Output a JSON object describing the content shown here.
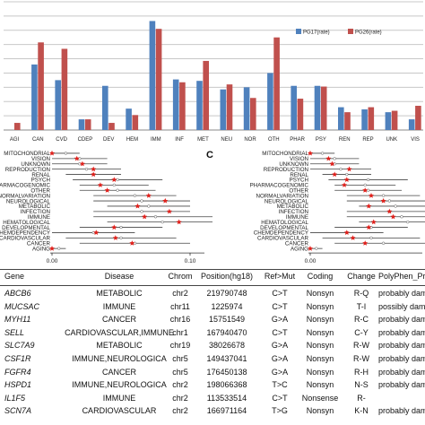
{
  "chart_data": [
    {
      "type": "bar",
      "categories": [
        "AGI",
        "CAN",
        "CVD",
        "CDEP",
        "DEV",
        "HEM",
        "IMM",
        "INF",
        "MET",
        "NEU",
        "NOR",
        "OTH",
        "PHAR",
        "PSY",
        "REN",
        "REP",
        "UNK",
        "VIS"
      ],
      "series": [
        {
          "name": "PG17(rate)",
          "color": "#4f81bd",
          "values": [
            0,
            9.2,
            7.0,
            1.5,
            6.2,
            3.0,
            15.3,
            7.1,
            6.9,
            5.7,
            6.0,
            8.0,
            6.2,
            6.2,
            3.2,
            2.9,
            2.5,
            1.5
          ]
        },
        {
          "name": "PG26(rate)",
          "color": "#c0504d",
          "values": [
            1.0,
            12.3,
            11.4,
            1.5,
            1.0,
            2.1,
            14.2,
            6.7,
            9.7,
            6.4,
            4.5,
            13.0,
            4.4,
            6.1,
            2.5,
            3.2,
            2.7,
            3.4
          ]
        }
      ],
      "ylim": [
        0,
        18
      ],
      "grid": true,
      "legend": "top-right"
    },
    {
      "type": "scatter",
      "panel": "B",
      "categories": [
        "MITOCHONDRIAL",
        "VISION",
        "UNKNOWN",
        "REPRODUCTION",
        "RENAL",
        "PSYCH",
        "PHARMACOGENOMIC",
        "OTHER",
        "NORMALVARIATION",
        "NEUROLOGICAL",
        "METABOLIC",
        "INFECTION",
        "IMMUNE",
        "HEMATOLOGICAL",
        "DEVELOPMENTAL",
        "CHEMDEPENDENCY",
        "CARDIOVASCULAR",
        "CANCER",
        "AGING"
      ],
      "tick_labels": [
        "0.00",
        "0.10"
      ],
      "xlim": [
        0,
        0.1
      ],
      "star_values": [
        0.0,
        0.018,
        0.022,
        0.03,
        0.03,
        0.045,
        0.035,
        0.04,
        0.07,
        0.082,
        0.062,
        0.085,
        0.067,
        0.092,
        0.045,
        0.032,
        0.046,
        0.058,
        0.0
      ],
      "intervals": [
        [
          0.0,
          0.02
        ],
        [
          0.0,
          0.04
        ],
        [
          0.0,
          0.04
        ],
        [
          0.0,
          0.05
        ],
        [
          0.01,
          0.05
        ],
        [
          0.015,
          0.08
        ],
        [
          0.02,
          0.07
        ],
        [
          0.02,
          0.075
        ],
        [
          0.03,
          0.09
        ],
        [
          0.03,
          0.1
        ],
        [
          0.04,
          0.1
        ],
        [
          0.03,
          0.1
        ],
        [
          0.03,
          0.12
        ],
        [
          0.04,
          0.12
        ],
        [
          0.02,
          0.08
        ],
        [
          0.0,
          0.06
        ],
        [
          0.01,
          0.09
        ],
        [
          0.02,
          0.1
        ],
        [
          0.0,
          0.01
        ]
      ]
    },
    {
      "type": "scatter",
      "panel": "C",
      "panel_label": "C",
      "categories": [
        "MITOCHONDRIAL",
        "VISION",
        "UNKNOWN",
        "REPRODUCTION",
        "RENAL",
        "PSYCH",
        "PHARMACOGENOMIC",
        "OTHER",
        "NORMALVARIATION",
        "NEUROLOGICAL",
        "METABOLIC",
        "INFECTION",
        "IMMUNE",
        "HEMATOLOGICAL",
        "DEVELOPMENTAL",
        "CHEMDEPENDENCY",
        "CARDIOVASCULAR",
        "CANCER",
        "AGING"
      ],
      "tick_labels": [
        "0.00"
      ],
      "xlim": [
        0,
        0.1
      ],
      "star_values": [
        0.0,
        0.015,
        0.018,
        0.032,
        0.02,
        0.03,
        0.028,
        0.045,
        0.05,
        0.06,
        0.048,
        0.065,
        0.068,
        0.052,
        0.048,
        0.03,
        0.035,
        0.045,
        0.0
      ],
      "intervals": [
        [
          0.0,
          0.02
        ],
        [
          0.0,
          0.04
        ],
        [
          0.0,
          0.04
        ],
        [
          0.0,
          0.05
        ],
        [
          0.01,
          0.05
        ],
        [
          0.015,
          0.08
        ],
        [
          0.02,
          0.07
        ],
        [
          0.02,
          0.075
        ],
        [
          0.03,
          0.09
        ],
        [
          0.03,
          0.1
        ],
        [
          0.04,
          0.1
        ],
        [
          0.03,
          0.1
        ],
        [
          0.03,
          0.12
        ],
        [
          0.04,
          0.12
        ],
        [
          0.02,
          0.08
        ],
        [
          0.0,
          0.06
        ],
        [
          0.01,
          0.09
        ],
        [
          0.02,
          0.1
        ],
        [
          0.0,
          0.01
        ]
      ]
    }
  ],
  "table": {
    "headers": [
      "Gene",
      "Disease",
      "Chrom",
      "Position(hg18)",
      "Ref>Mut",
      "Coding",
      "Change",
      "PolyPhen_Pre"
    ],
    "rows": [
      [
        "ABCB6",
        "METABOLIC",
        "chr2",
        "219790748",
        "C>T",
        "Nonsyn",
        "R-Q",
        "probably dam"
      ],
      [
        "MUCSAC",
        "IMMUNE",
        "chr11",
        "1225974",
        "C>T",
        "Nonsyn",
        "T-I",
        "possibly dam"
      ],
      [
        "MYH11",
        "CANCER",
        "chr16",
        "15751549",
        "G>A",
        "Nonsyn",
        "R-C",
        "probably dam"
      ],
      [
        "SELL",
        "CARDIOVASCULAR,IMMUNE",
        "chr1",
        "167940470",
        "C>T",
        "Nonsyn",
        "C-Y",
        "probably dam"
      ],
      [
        "SLC7A9",
        "METABOLIC",
        "chr19",
        "38026678",
        "G>A",
        "Nonsyn",
        "R-W",
        "probably dam"
      ],
      [
        "CSF1R",
        "IMMUNE,NEUROLOGICA",
        "chr5",
        "149437041",
        "G>A",
        "Nonsyn",
        "R-W",
        "probably dam"
      ],
      [
        "FGFR4",
        "CANCER",
        "chr5",
        "176450138",
        "G>A",
        "Nonsyn",
        "R-H",
        "probably dam"
      ],
      [
        "HSPD1",
        "IMMUNE,NEUROLOGICA",
        "chr2",
        "198066368",
        "T>C",
        "Nonsyn",
        "N-S",
        "probably dam"
      ],
      [
        "IL1F5",
        "IMMUNE",
        "chr2",
        "113533514",
        "C>T",
        "Nonsense",
        "R-",
        ""
      ],
      [
        "SCN7A",
        "CARDIOVASCULAR",
        "chr2",
        "166971164",
        "T>G",
        "Nonsyn",
        "K-N",
        "probably dam"
      ]
    ]
  }
}
